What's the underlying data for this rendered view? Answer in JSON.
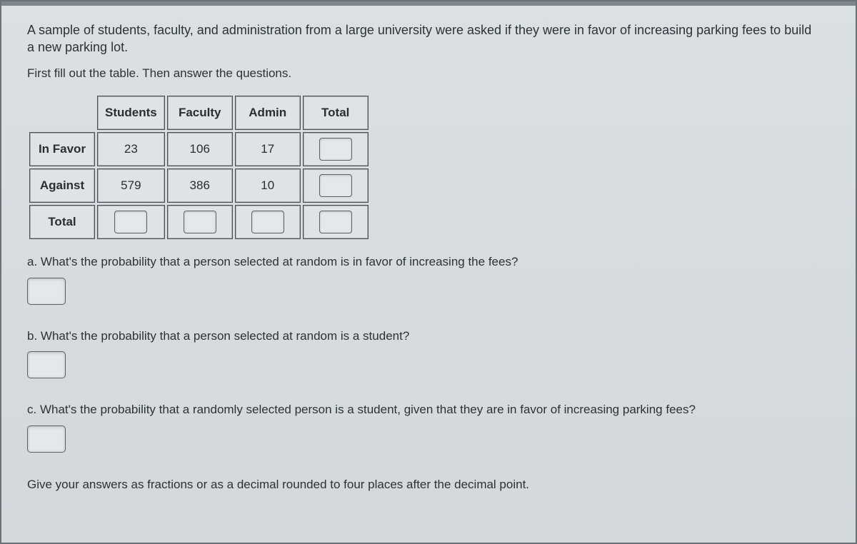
{
  "intro": "A sample of students, faculty, and administration from a large university were asked if they were in favor of increasing parking fees to build a new parking lot.",
  "instruction": "First fill out the table. Then answer the questions.",
  "table": {
    "col_headers": [
      "Students",
      "Faculty",
      "Admin",
      "Total"
    ],
    "row_headers": [
      "In Favor",
      "Against",
      "Total"
    ],
    "cells": {
      "r0c0": "23",
      "r0c1": "106",
      "r0c2": "17",
      "r0c3": "",
      "r1c0": "579",
      "r1c1": "386",
      "r1c2": "10",
      "r1c3": "",
      "r2c0": "",
      "r2c1": "",
      "r2c2": "",
      "r2c3": ""
    }
  },
  "questions": {
    "a": "a. What's the probability that a person selected at random is in favor of increasing the fees?",
    "b": "b. What's the probability that a person selected at random is a student?",
    "c": "c. What's the probability that a randomly selected person is a student, given that they are in favor of increasing parking fees?"
  },
  "footer": "Give your answers as fractions or as a decimal rounded to four places after the decimal point.",
  "style": {
    "page_bg": "#d8dde0",
    "cell_border": "#4a4f55",
    "cell_bg": "#dfe3e6",
    "input_bg": "#e4e8ea",
    "text_color": "#2b3238",
    "font_size_body": 17,
    "font_size_intro": 18,
    "table_cell_min_width": 92,
    "table_cell_height": 48
  }
}
